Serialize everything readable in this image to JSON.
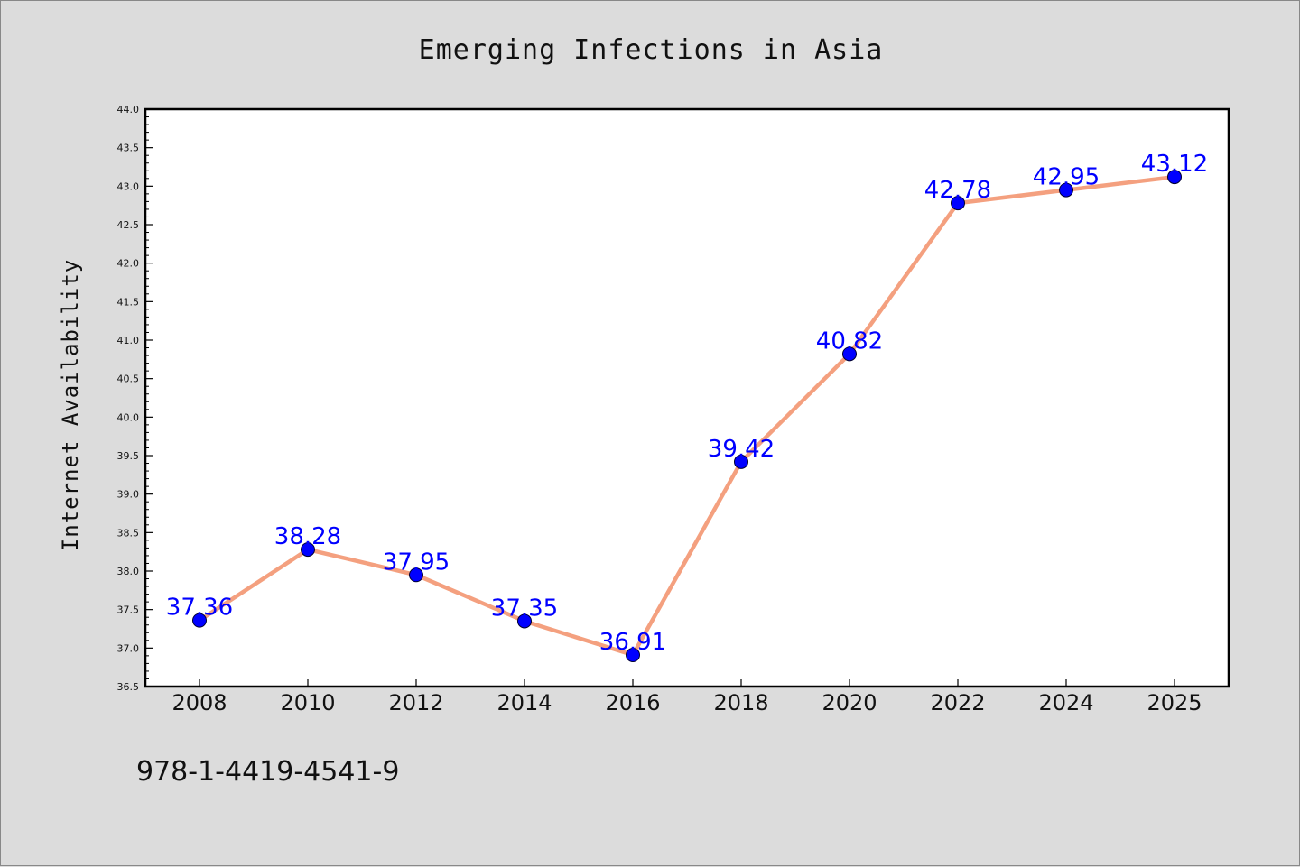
{
  "chart_data": {
    "type": "line",
    "title": "Emerging Infections in Asia",
    "xlabel": "",
    "ylabel": "Internet Availability",
    "x": [
      "2008",
      "2010",
      "2012",
      "2014",
      "2016",
      "2018",
      "2020",
      "2022",
      "2024",
      "2025"
    ],
    "series": [
      {
        "values": [
          37.36,
          38.28,
          37.95,
          37.35,
          36.91,
          39.42,
          40.82,
          42.78,
          42.95,
          43.12
        ],
        "line_color": "#f4a07f",
        "marker_color": "#0000ff"
      }
    ],
    "data_labels": [
      "37.36",
      "38.28",
      "37.95",
      "37.35",
      "36.91",
      "39.42",
      "40.82",
      "42.78",
      "42.95",
      "43.12"
    ],
    "data_label_color": "#0000ff",
    "ylim": [
      36.5,
      44.0
    ],
    "yticks": [
      "36.5",
      "37.0",
      "37.5",
      "38.0",
      "38.5",
      "39.0",
      "39.5",
      "40.0",
      "40.5",
      "41.0",
      "41.5",
      "42.0",
      "42.5",
      "43.0",
      "43.5",
      "44.0"
    ],
    "grid": false,
    "legend": "none"
  },
  "footer": {
    "isbn": "978-1-4419-4541-9"
  },
  "colors": {
    "background": "#dcdcdc",
    "plot_background": "#ffffff",
    "axis": "#000000"
  }
}
